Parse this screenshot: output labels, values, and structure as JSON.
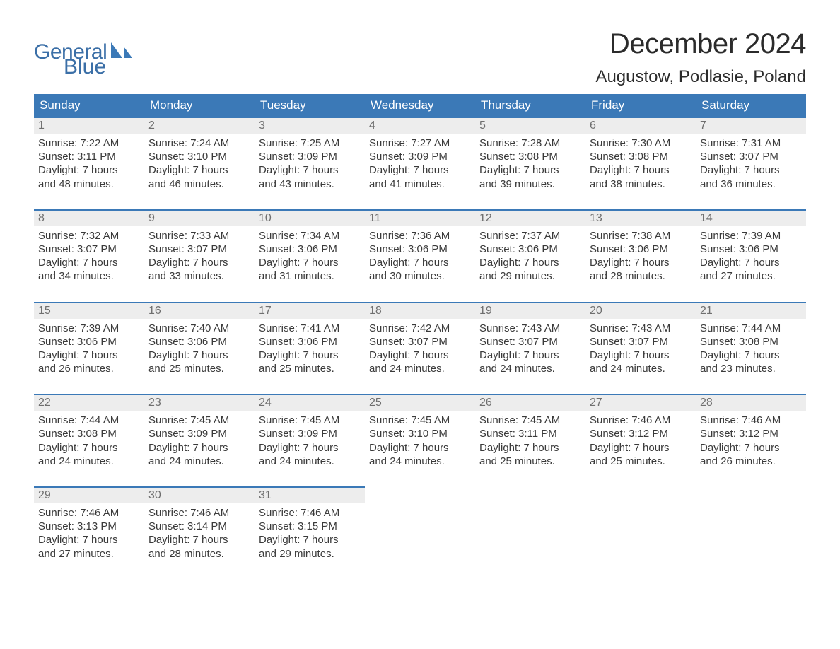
{
  "brand": {
    "general": "General",
    "blue": "Blue"
  },
  "title": "December 2024",
  "location": "Augustow, Podlasie, Poland",
  "colors": {
    "header_bg": "#3b79b7",
    "header_text": "#ffffff",
    "row_separator": "#3b79b7",
    "daynum_bg": "#ededed",
    "daynum_text": "#6f6f6f",
    "body_text": "#3a3a3a",
    "brand": "#3b6fa7",
    "page_bg": "#ffffff"
  },
  "weekdays": [
    "Sunday",
    "Monday",
    "Tuesday",
    "Wednesday",
    "Thursday",
    "Friday",
    "Saturday"
  ],
  "weeks": [
    [
      {
        "n": "1",
        "sunrise": "7:22 AM",
        "sunset": "3:11 PM",
        "dl1": "Daylight: 7 hours",
        "dl2": "and 48 minutes."
      },
      {
        "n": "2",
        "sunrise": "7:24 AM",
        "sunset": "3:10 PM",
        "dl1": "Daylight: 7 hours",
        "dl2": "and 46 minutes."
      },
      {
        "n": "3",
        "sunrise": "7:25 AM",
        "sunset": "3:09 PM",
        "dl1": "Daylight: 7 hours",
        "dl2": "and 43 minutes."
      },
      {
        "n": "4",
        "sunrise": "7:27 AM",
        "sunset": "3:09 PM",
        "dl1": "Daylight: 7 hours",
        "dl2": "and 41 minutes."
      },
      {
        "n": "5",
        "sunrise": "7:28 AM",
        "sunset": "3:08 PM",
        "dl1": "Daylight: 7 hours",
        "dl2": "and 39 minutes."
      },
      {
        "n": "6",
        "sunrise": "7:30 AM",
        "sunset": "3:08 PM",
        "dl1": "Daylight: 7 hours",
        "dl2": "and 38 minutes."
      },
      {
        "n": "7",
        "sunrise": "7:31 AM",
        "sunset": "3:07 PM",
        "dl1": "Daylight: 7 hours",
        "dl2": "and 36 minutes."
      }
    ],
    [
      {
        "n": "8",
        "sunrise": "7:32 AM",
        "sunset": "3:07 PM",
        "dl1": "Daylight: 7 hours",
        "dl2": "and 34 minutes."
      },
      {
        "n": "9",
        "sunrise": "7:33 AM",
        "sunset": "3:07 PM",
        "dl1": "Daylight: 7 hours",
        "dl2": "and 33 minutes."
      },
      {
        "n": "10",
        "sunrise": "7:34 AM",
        "sunset": "3:06 PM",
        "dl1": "Daylight: 7 hours",
        "dl2": "and 31 minutes."
      },
      {
        "n": "11",
        "sunrise": "7:36 AM",
        "sunset": "3:06 PM",
        "dl1": "Daylight: 7 hours",
        "dl2": "and 30 minutes."
      },
      {
        "n": "12",
        "sunrise": "7:37 AM",
        "sunset": "3:06 PM",
        "dl1": "Daylight: 7 hours",
        "dl2": "and 29 minutes."
      },
      {
        "n": "13",
        "sunrise": "7:38 AM",
        "sunset": "3:06 PM",
        "dl1": "Daylight: 7 hours",
        "dl2": "and 28 minutes."
      },
      {
        "n": "14",
        "sunrise": "7:39 AM",
        "sunset": "3:06 PM",
        "dl1": "Daylight: 7 hours",
        "dl2": "and 27 minutes."
      }
    ],
    [
      {
        "n": "15",
        "sunrise": "7:39 AM",
        "sunset": "3:06 PM",
        "dl1": "Daylight: 7 hours",
        "dl2": "and 26 minutes."
      },
      {
        "n": "16",
        "sunrise": "7:40 AM",
        "sunset": "3:06 PM",
        "dl1": "Daylight: 7 hours",
        "dl2": "and 25 minutes."
      },
      {
        "n": "17",
        "sunrise": "7:41 AM",
        "sunset": "3:06 PM",
        "dl1": "Daylight: 7 hours",
        "dl2": "and 25 minutes."
      },
      {
        "n": "18",
        "sunrise": "7:42 AM",
        "sunset": "3:07 PM",
        "dl1": "Daylight: 7 hours",
        "dl2": "and 24 minutes."
      },
      {
        "n": "19",
        "sunrise": "7:43 AM",
        "sunset": "3:07 PM",
        "dl1": "Daylight: 7 hours",
        "dl2": "and 24 minutes."
      },
      {
        "n": "20",
        "sunrise": "7:43 AM",
        "sunset": "3:07 PM",
        "dl1": "Daylight: 7 hours",
        "dl2": "and 24 minutes."
      },
      {
        "n": "21",
        "sunrise": "7:44 AM",
        "sunset": "3:08 PM",
        "dl1": "Daylight: 7 hours",
        "dl2": "and 23 minutes."
      }
    ],
    [
      {
        "n": "22",
        "sunrise": "7:44 AM",
        "sunset": "3:08 PM",
        "dl1": "Daylight: 7 hours",
        "dl2": "and 24 minutes."
      },
      {
        "n": "23",
        "sunrise": "7:45 AM",
        "sunset": "3:09 PM",
        "dl1": "Daylight: 7 hours",
        "dl2": "and 24 minutes."
      },
      {
        "n": "24",
        "sunrise": "7:45 AM",
        "sunset": "3:09 PM",
        "dl1": "Daylight: 7 hours",
        "dl2": "and 24 minutes."
      },
      {
        "n": "25",
        "sunrise": "7:45 AM",
        "sunset": "3:10 PM",
        "dl1": "Daylight: 7 hours",
        "dl2": "and 24 minutes."
      },
      {
        "n": "26",
        "sunrise": "7:45 AM",
        "sunset": "3:11 PM",
        "dl1": "Daylight: 7 hours",
        "dl2": "and 25 minutes."
      },
      {
        "n": "27",
        "sunrise": "7:46 AM",
        "sunset": "3:12 PM",
        "dl1": "Daylight: 7 hours",
        "dl2": "and 25 minutes."
      },
      {
        "n": "28",
        "sunrise": "7:46 AM",
        "sunset": "3:12 PM",
        "dl1": "Daylight: 7 hours",
        "dl2": "and 26 minutes."
      }
    ],
    [
      {
        "n": "29",
        "sunrise": "7:46 AM",
        "sunset": "3:13 PM",
        "dl1": "Daylight: 7 hours",
        "dl2": "and 27 minutes."
      },
      {
        "n": "30",
        "sunrise": "7:46 AM",
        "sunset": "3:14 PM",
        "dl1": "Daylight: 7 hours",
        "dl2": "and 28 minutes."
      },
      {
        "n": "31",
        "sunrise": "7:46 AM",
        "sunset": "3:15 PM",
        "dl1": "Daylight: 7 hours",
        "dl2": "and 29 minutes."
      },
      null,
      null,
      null,
      null
    ]
  ],
  "labels": {
    "sunrise": "Sunrise: ",
    "sunset": "Sunset: "
  }
}
